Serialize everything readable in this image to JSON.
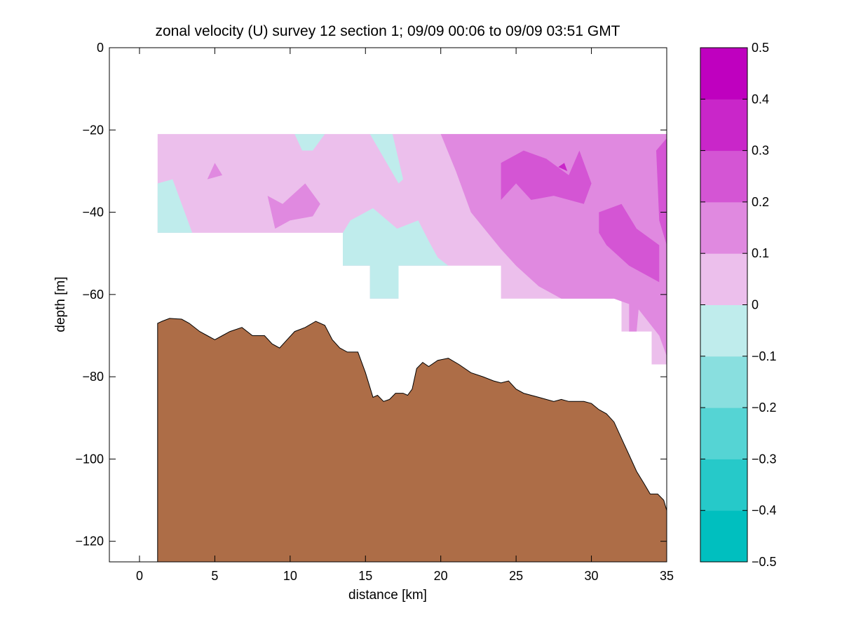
{
  "chart_data": {
    "type": "filled-contour",
    "title": "zonal velocity (U) survey 12 section 1; 09/09 00:06 to 09/09 03:51 GMT",
    "xlabel": "distance [km]",
    "ylabel": "depth [m]",
    "xlim": [
      -2,
      35
    ],
    "ylim": [
      -125,
      0
    ],
    "xticks": [
      0,
      5,
      10,
      15,
      20,
      25,
      30,
      35
    ],
    "yticks": [
      0,
      -20,
      -40,
      -60,
      -80,
      -100,
      -120
    ],
    "grid": false,
    "colorbar": {
      "placement": "right",
      "levels": [
        -0.5,
        -0.4,
        -0.3,
        -0.2,
        -0.1,
        0,
        0.1,
        0.2,
        0.3,
        0.4,
        0.5
      ],
      "tick_labels": [
        "0.5",
        "0.4",
        "0.3",
        "0.2",
        "0.1",
        "0",
        "−0.1",
        "−0.2",
        "−0.3",
        "−0.4",
        "−0.5"
      ],
      "colors": [
        "#00bfbf",
        "#26c9c9",
        "#55d4d4",
        "#89dfdf",
        "#bfecec",
        "#ecbfec",
        "#e089e0",
        "#d455d4",
        "#c926c9",
        "#bf00bf"
      ]
    },
    "data_extent": {
      "x_start_km": 1.2,
      "x_end_km": 35,
      "top_depth_m": -21,
      "bottom_profile": [
        [
          1.2,
          -45
        ],
        [
          13.5,
          -45
        ],
        [
          13.5,
          -53
        ],
        [
          15.3,
          -53
        ],
        [
          15.3,
          -61
        ],
        [
          17.2,
          -61
        ],
        [
          17.2,
          -53
        ],
        [
          24,
          -53
        ],
        [
          24,
          -61
        ],
        [
          32,
          -61
        ],
        [
          32,
          -69
        ],
        [
          34,
          -69
        ],
        [
          34,
          -77
        ],
        [
          35,
          -77
        ],
        [
          35,
          -85
        ]
      ]
    },
    "velocity_regions": [
      {
        "level": 0.05,
        "polygon": [
          [
            1.2,
            -21
          ],
          [
            35,
            -21
          ],
          [
            35,
            -85
          ],
          [
            35,
            -77
          ],
          [
            34,
            -77
          ],
          [
            34,
            -69
          ],
          [
            32,
            -69
          ],
          [
            32,
            -61
          ],
          [
            24,
            -61
          ],
          [
            24,
            -53
          ],
          [
            17.2,
            -53
          ],
          [
            17.2,
            -61
          ],
          [
            15.3,
            -61
          ],
          [
            15.3,
            -53
          ],
          [
            13.5,
            -53
          ],
          [
            13.5,
            -45
          ],
          [
            1.2,
            -45
          ]
        ]
      },
      {
        "level": -0.05,
        "polygon": [
          [
            1.2,
            -33
          ],
          [
            2.2,
            -32
          ],
          [
            3.5,
            -45
          ],
          [
            1.2,
            -45
          ]
        ]
      },
      {
        "level": -0.05,
        "polygon": [
          [
            10.3,
            -21
          ],
          [
            12.3,
            -21
          ],
          [
            11.5,
            -25
          ],
          [
            10.8,
            -25
          ]
        ]
      },
      {
        "level": -0.05,
        "polygon": [
          [
            15.3,
            -21
          ],
          [
            16.8,
            -21
          ],
          [
            17.5,
            -32
          ],
          [
            17.2,
            -33
          ]
        ]
      },
      {
        "level": -0.05,
        "polygon": [
          [
            13.5,
            -45
          ],
          [
            14,
            -42
          ],
          [
            15.5,
            -39
          ],
          [
            17.1,
            -44
          ],
          [
            18.5,
            -42
          ],
          [
            19.2,
            -47
          ],
          [
            19.8,
            -51
          ],
          [
            20.5,
            -53
          ],
          [
            17.2,
            -53
          ],
          [
            17.2,
            -61
          ],
          [
            15.3,
            -61
          ],
          [
            15.3,
            -53
          ],
          [
            13.5,
            -53
          ]
        ]
      },
      {
        "level": 0.15,
        "polygon": [
          [
            20,
            -21
          ],
          [
            35,
            -21
          ],
          [
            35,
            -75
          ],
          [
            34.5,
            -70
          ],
          [
            33,
            -63
          ],
          [
            31.5,
            -61
          ],
          [
            28,
            -61
          ],
          [
            26.5,
            -58
          ],
          [
            25,
            -53
          ],
          [
            24,
            -49
          ],
          [
            22,
            -40
          ],
          [
            21,
            -30
          ]
        ]
      },
      {
        "level": 0.15,
        "polygon": [
          [
            8.5,
            -36
          ],
          [
            9.5,
            -38
          ],
          [
            11,
            -33
          ],
          [
            12,
            -38
          ],
          [
            11.5,
            -41
          ],
          [
            10,
            -42
          ],
          [
            9,
            -44
          ]
        ]
      },
      {
        "level": 0.15,
        "polygon": [
          [
            5,
            -28
          ],
          [
            5.5,
            -31
          ],
          [
            4.5,
            -32
          ]
        ]
      },
      {
        "level": 0.15,
        "polygon": [
          [
            32.5,
            -61
          ],
          [
            33.2,
            -61
          ],
          [
            33,
            -69
          ],
          [
            32.5,
            -69
          ]
        ]
      },
      {
        "level": 0.25,
        "polygon": [
          [
            24,
            -28
          ],
          [
            25.5,
            -25
          ],
          [
            27,
            -27
          ],
          [
            28.5,
            -31
          ],
          [
            29.2,
            -25
          ],
          [
            30,
            -33
          ],
          [
            29.5,
            -38
          ],
          [
            27.5,
            -36
          ],
          [
            26,
            -37
          ],
          [
            25,
            -33
          ],
          [
            24,
            -37
          ]
        ]
      },
      {
        "level": 0.25,
        "polygon": [
          [
            30.5,
            -40
          ],
          [
            32,
            -38
          ],
          [
            33,
            -44
          ],
          [
            34.5,
            -48
          ],
          [
            34.5,
            -57
          ],
          [
            32.5,
            -53
          ],
          [
            31,
            -48
          ],
          [
            30.5,
            -45
          ]
        ]
      },
      {
        "level": 0.25,
        "polygon": [
          [
            34.3,
            -25
          ],
          [
            35,
            -22
          ],
          [
            35,
            -48
          ],
          [
            34.5,
            -42
          ]
        ]
      },
      {
        "level": 0.35,
        "polygon": [
          [
            27.8,
            -29
          ],
          [
            28.2,
            -28
          ],
          [
            28.4,
            -30
          ]
        ]
      }
    ],
    "bathymetry": {
      "fill_color": "#ad6d47",
      "profile": [
        [
          1.2,
          -67
        ],
        [
          1.5,
          -66.5
        ],
        [
          2,
          -65.8
        ],
        [
          2.8,
          -66
        ],
        [
          3.3,
          -67
        ],
        [
          4,
          -69
        ],
        [
          4.5,
          -70
        ],
        [
          5,
          -71
        ],
        [
          5.5,
          -70
        ],
        [
          6,
          -69
        ],
        [
          6.8,
          -68
        ],
        [
          7.5,
          -70
        ],
        [
          8.3,
          -70
        ],
        [
          8.8,
          -72
        ],
        [
          9.3,
          -73
        ],
        [
          9.8,
          -71
        ],
        [
          10.3,
          -69
        ],
        [
          11,
          -68
        ],
        [
          11.7,
          -66.5
        ],
        [
          12.3,
          -67.5
        ],
        [
          12.8,
          -71
        ],
        [
          13.3,
          -73
        ],
        [
          13.8,
          -74
        ],
        [
          14.5,
          -74
        ],
        [
          15,
          -79
        ],
        [
          15.5,
          -85
        ],
        [
          15.8,
          -84.5
        ],
        [
          16.2,
          -86
        ],
        [
          16.6,
          -85.5
        ],
        [
          17,
          -84
        ],
        [
          17.5,
          -84
        ],
        [
          17.8,
          -84.5
        ],
        [
          18.1,
          -83
        ],
        [
          18.4,
          -78
        ],
        [
          18.8,
          -76.5
        ],
        [
          19.2,
          -77.5
        ],
        [
          19.8,
          -76
        ],
        [
          20.5,
          -75.5
        ],
        [
          21.2,
          -77
        ],
        [
          22,
          -79
        ],
        [
          22.8,
          -80
        ],
        [
          23.5,
          -81
        ],
        [
          24,
          -81.5
        ],
        [
          24.5,
          -81
        ],
        [
          25,
          -83
        ],
        [
          25.5,
          -84
        ],
        [
          26,
          -84.5
        ],
        [
          26.5,
          -85
        ],
        [
          27,
          -85.5
        ],
        [
          27.5,
          -86
        ],
        [
          28,
          -85.5
        ],
        [
          28.5,
          -86
        ],
        [
          29.5,
          -86
        ],
        [
          30,
          -86.5
        ],
        [
          30.5,
          -88
        ],
        [
          31,
          -89
        ],
        [
          31.5,
          -91
        ],
        [
          32,
          -95
        ],
        [
          32.5,
          -99
        ],
        [
          33,
          -103
        ],
        [
          33.5,
          -106
        ],
        [
          33.9,
          -108.5
        ],
        [
          34.4,
          -108.5
        ],
        [
          34.8,
          -110
        ],
        [
          35,
          -112.5
        ]
      ]
    }
  }
}
